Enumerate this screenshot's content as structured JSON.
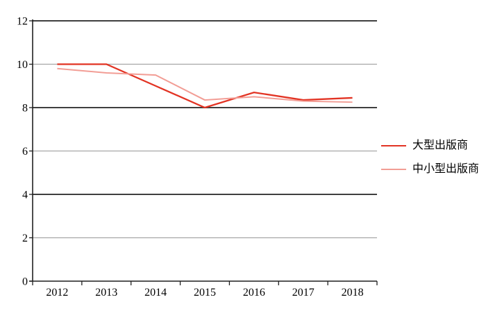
{
  "chart_data": {
    "type": "line",
    "categories": [
      "2012",
      "2013",
      "2014",
      "2015",
      "2016",
      "2017",
      "2018"
    ],
    "series": [
      {
        "name": "大型出版商",
        "color": "#e23323",
        "values": [
          10.0,
          10.0,
          9.0,
          8.0,
          8.7,
          8.35,
          8.45
        ]
      },
      {
        "name": "中小型出版商",
        "color": "#f29d95",
        "values": [
          9.8,
          9.6,
          9.5,
          8.35,
          8.5,
          8.3,
          8.25
        ]
      }
    ],
    "yticks": [
      0,
      2,
      4,
      6,
      8,
      10,
      12
    ],
    "ylim": [
      0,
      12
    ],
    "grid": true,
    "legend_position": "right"
  },
  "colors": {
    "background": "#ffffff",
    "axis": "#1f1f1f",
    "gridline_dark": "#3f3f3f",
    "gridline_light": "#a6a6a6",
    "text": "#000000"
  }
}
